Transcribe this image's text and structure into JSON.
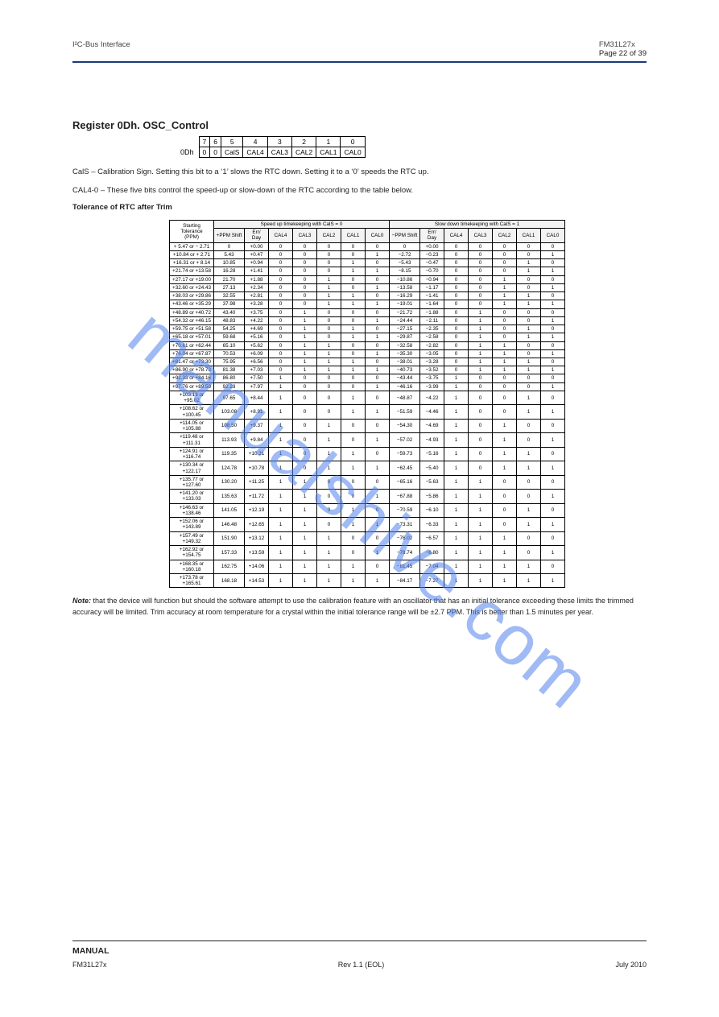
{
  "page": {
    "header_left": "I²C-Bus Interface",
    "header_right_model": "FM31L27x",
    "header_right_page": "Page 22 of 39",
    "watermark": "manualshive.com",
    "footer_manual": "MANUAL",
    "footer_model": "FM31L27x",
    "footer_rev": "Rev 1.1 (EOL)",
    "footer_date": "July 2010"
  },
  "register": {
    "title": "Register 0Dh. OSC_Control",
    "bit_labels": [
      "7",
      "6",
      "5",
      "4",
      "3",
      "2",
      "1",
      "0"
    ],
    "row_addr": "0Dh",
    "row_vals": [
      "0",
      "0",
      "CalS",
      "CAL4",
      "CAL3",
      "CAL2",
      "CAL1",
      "CAL0"
    ],
    "cals_text": "CalS – Calibration Sign. Setting this bit to a ‘1’ slows the RTC down. Setting it to a ‘0’ speeds the RTC up.",
    "calx_text": "CAL4-0 – These five bits control the speed-up or slow-down of the RTC according to the table below.",
    "tol_title": "Tolerance of RTC after Trim",
    "table": {
      "speedup_header": "Speed up timekeeping with CalS = 0",
      "slowdown_header": "Slow down timekeeping with CalS = 1",
      "col_labels": [
        "+PPM Shift",
        "Err/ Day",
        "CAL4",
        "CAL3",
        "CAL2",
        "CAL1",
        "CAL0",
        "−PPM Shift",
        "Err/ Day",
        "CAL4",
        "CAL3",
        "CAL2",
        "CAL1",
        "CAL0"
      ],
      "rows": [
        {
          "range": "+ 5.47 or − 2.71",
          "sp": [
            "0",
            "+0.00",
            "0",
            "0",
            "0",
            "0",
            "0"
          ],
          "sd": [
            "0",
            "+0.00",
            "0",
            "0",
            "0",
            "0",
            "0"
          ]
        },
        {
          "range": "+10.84 or + 2.71",
          "sp": [
            "5.43",
            "+0.47",
            "0",
            "0",
            "0",
            "0",
            "1"
          ],
          "sd": [
            "−2.72",
            "−0.23",
            "0",
            "0",
            "0",
            "0",
            "1"
          ]
        },
        {
          "range": "+16.31 or + 8.14",
          "sp": [
            "10.85",
            "+0.94",
            "0",
            "0",
            "0",
            "1",
            "0"
          ],
          "sd": [
            "−5.43",
            "−0.47",
            "0",
            "0",
            "0",
            "1",
            "0"
          ]
        },
        {
          "range": "+21.74 or +13.58",
          "sp": [
            "16.28",
            "+1.41",
            "0",
            "0",
            "0",
            "1",
            "1"
          ],
          "sd": [
            "−8.15",
            "−0.70",
            "0",
            "0",
            "0",
            "1",
            "1"
          ]
        },
        {
          "range": "+27.17 or +19.00",
          "sp": [
            "21.70",
            "+1.88",
            "0",
            "0",
            "1",
            "0",
            "0"
          ],
          "sd": [
            "−10.86",
            "−0.94",
            "0",
            "0",
            "1",
            "0",
            "0"
          ]
        },
        {
          "range": "+32.60 or +24.43",
          "sp": [
            "27.13",
            "+2.34",
            "0",
            "0",
            "1",
            "0",
            "1"
          ],
          "sd": [
            "−13.58",
            "−1.17",
            "0",
            "0",
            "1",
            "0",
            "1"
          ]
        },
        {
          "range": "+38.03 or +29.86",
          "sp": [
            "32.55",
            "+2.81",
            "0",
            "0",
            "1",
            "1",
            "0"
          ],
          "sd": [
            "−16.29",
            "−1.41",
            "0",
            "0",
            "1",
            "1",
            "0"
          ]
        },
        {
          "range": "+43.46 or +35.29",
          "sp": [
            "37.98",
            "+3.28",
            "0",
            "0",
            "1",
            "1",
            "1"
          ],
          "sd": [
            "−19.01",
            "−1.64",
            "0",
            "0",
            "1",
            "1",
            "1"
          ]
        },
        {
          "range": "+48.89 or +40.72",
          "sp": [
            "43.40",
            "+3.75",
            "0",
            "1",
            "0",
            "0",
            "0"
          ],
          "sd": [
            "−21.72",
            "−1.88",
            "0",
            "1",
            "0",
            "0",
            "0"
          ]
        },
        {
          "range": "+54.32 or +46.15",
          "sp": [
            "48.83",
            "+4.22",
            "0",
            "1",
            "0",
            "0",
            "1"
          ],
          "sd": [
            "−24.44",
            "−2.11",
            "0",
            "1",
            "0",
            "0",
            "1"
          ]
        },
        {
          "range": "+59.75 or +51.58",
          "sp": [
            "54.25",
            "+4.69",
            "0",
            "1",
            "0",
            "1",
            "0"
          ],
          "sd": [
            "−27.15",
            "−2.35",
            "0",
            "1",
            "0",
            "1",
            "0"
          ]
        },
        {
          "range": "+65.18 or +57.01",
          "sp": [
            "59.68",
            "+5.16",
            "0",
            "1",
            "0",
            "1",
            "1"
          ],
          "sd": [
            "−29.87",
            "−2.58",
            "0",
            "1",
            "0",
            "1",
            "1"
          ]
        },
        {
          "range": "+70.61 or +62.44",
          "sp": [
            "65.10",
            "+5.62",
            "0",
            "1",
            "1",
            "0",
            "0"
          ],
          "sd": [
            "−32.58",
            "−2.82",
            "0",
            "1",
            "1",
            "0",
            "0"
          ]
        },
        {
          "range": "+76.04 or +67.87",
          "sp": [
            "70.53",
            "+6.09",
            "0",
            "1",
            "1",
            "0",
            "1"
          ],
          "sd": [
            "−35.30",
            "−3.05",
            "0",
            "1",
            "1",
            "0",
            "1"
          ]
        },
        {
          "range": "+81.47 or +73.30",
          "sp": [
            "75.95",
            "+6.56",
            "0",
            "1",
            "1",
            "1",
            "0"
          ],
          "sd": [
            "−38.01",
            "−3.28",
            "0",
            "1",
            "1",
            "1",
            "0"
          ]
        },
        {
          "range": "+86.90 or +78.73",
          "sp": [
            "81.38",
            "+7.03",
            "0",
            "1",
            "1",
            "1",
            "1"
          ],
          "sd": [
            "−40.73",
            "−3.52",
            "0",
            "1",
            "1",
            "1",
            "1"
          ]
        },
        {
          "range": "+92.33 or +84.16",
          "sp": [
            "86.80",
            "+7.50",
            "1",
            "0",
            "0",
            "0",
            "0"
          ],
          "sd": [
            "−43.44",
            "−3.75",
            "1",
            "0",
            "0",
            "0",
            "0"
          ]
        },
        {
          "range": "+97.76 or +89.59",
          "sp": [
            "92.23",
            "+7.97",
            "1",
            "0",
            "0",
            "0",
            "1"
          ],
          "sd": [
            "−46.16",
            "−3.99",
            "1",
            "0",
            "0",
            "0",
            "1"
          ]
        },
        {
          "range": "+103.19 or +95.02",
          "sp": [
            "97.65",
            "+8.44",
            "1",
            "0",
            "0",
            "1",
            "0"
          ],
          "sd": [
            "−48.87",
            "−4.22",
            "1",
            "0",
            "0",
            "1",
            "0"
          ]
        },
        {
          "range": "+108.62 or +100.45",
          "sp": [
            "103.08",
            "+8.91",
            "1",
            "0",
            "0",
            "1",
            "1"
          ],
          "sd": [
            "−51.59",
            "−4.46",
            "1",
            "0",
            "0",
            "1",
            "1"
          ]
        },
        {
          "range": "+114.05 or +105.88",
          "sp": [
            "108.50",
            "+9.37",
            "1",
            "0",
            "1",
            "0",
            "0"
          ],
          "sd": [
            "−54.30",
            "−4.69",
            "1",
            "0",
            "1",
            "0",
            "0"
          ]
        },
        {
          "range": "+119.48 or +111.31",
          "sp": [
            "113.93",
            "+9.84",
            "1",
            "0",
            "1",
            "0",
            "1"
          ],
          "sd": [
            "−57.02",
            "−4.93",
            "1",
            "0",
            "1",
            "0",
            "1"
          ]
        },
        {
          "range": "+124.91 or +116.74",
          "sp": [
            "119.35",
            "+10.31",
            "1",
            "0",
            "1",
            "1",
            "0"
          ],
          "sd": [
            "−59.73",
            "−5.16",
            "1",
            "0",
            "1",
            "1",
            "0"
          ]
        },
        {
          "range": "+130.34 or +122.17",
          "sp": [
            "124.78",
            "+10.78",
            "1",
            "0",
            "1",
            "1",
            "1"
          ],
          "sd": [
            "−62.45",
            "−5.40",
            "1",
            "0",
            "1",
            "1",
            "1"
          ]
        },
        {
          "range": "+135.77 or +127.60",
          "sp": [
            "130.20",
            "+11.25",
            "1",
            "1",
            "0",
            "0",
            "0"
          ],
          "sd": [
            "−65.16",
            "−5.63",
            "1",
            "1",
            "0",
            "0",
            "0"
          ]
        },
        {
          "range": "+141.20 or +133.03",
          "sp": [
            "135.63",
            "+11.72",
            "1",
            "1",
            "0",
            "0",
            "1"
          ],
          "sd": [
            "−67.88",
            "−5.86",
            "1",
            "1",
            "0",
            "0",
            "1"
          ]
        },
        {
          "range": "+146.63 or +138.46",
          "sp": [
            "141.05",
            "+12.19",
            "1",
            "1",
            "0",
            "1",
            "0"
          ],
          "sd": [
            "−70.59",
            "−6.10",
            "1",
            "1",
            "0",
            "1",
            "0"
          ]
        },
        {
          "range": "+152.06 or +143.89",
          "sp": [
            "146.48",
            "+12.65",
            "1",
            "1",
            "0",
            "1",
            "1"
          ],
          "sd": [
            "−73.31",
            "−6.33",
            "1",
            "1",
            "0",
            "1",
            "1"
          ]
        },
        {
          "range": "+157.49 or +149.32",
          "sp": [
            "151.90",
            "+13.12",
            "1",
            "1",
            "1",
            "0",
            "0"
          ],
          "sd": [
            "−76.02",
            "−6.57",
            "1",
            "1",
            "1",
            "0",
            "0"
          ]
        },
        {
          "range": "+162.92 or +154.75",
          "sp": [
            "157.33",
            "+13.59",
            "1",
            "1",
            "1",
            "0",
            "1"
          ],
          "sd": [
            "−78.74",
            "−6.80",
            "1",
            "1",
            "1",
            "0",
            "1"
          ]
        },
        {
          "range": "+168.35 or +160.18",
          "sp": [
            "162.75",
            "+14.06",
            "1",
            "1",
            "1",
            "1",
            "0"
          ],
          "sd": [
            "−81.45",
            "−7.04",
            "1",
            "1",
            "1",
            "1",
            "0"
          ]
        },
        {
          "range": "+173.78 or +165.61",
          "sp": [
            "168.18",
            "+14.53",
            "1",
            "1",
            "1",
            "1",
            "1"
          ],
          "sd": [
            "−84.17",
            "−7.27",
            "1",
            "1",
            "1",
            "1",
            "1"
          ]
        }
      ]
    },
    "note_label": "Note:",
    "note_text": " that the device will function but should the software attempt to use the calibration feature with an oscillator that has an initial tolerance exceeding these limits the trimmed accuracy will be limited. Trim accuracy at room temperature for a crystal within the initial tolerance range will be ±2.7 PPM. This is better than 1.5 minutes per year."
  },
  "colors": {
    "rule": "#1b3a7a",
    "wm": "rgba(80,130,235,0.55)",
    "text": "#222222"
  }
}
